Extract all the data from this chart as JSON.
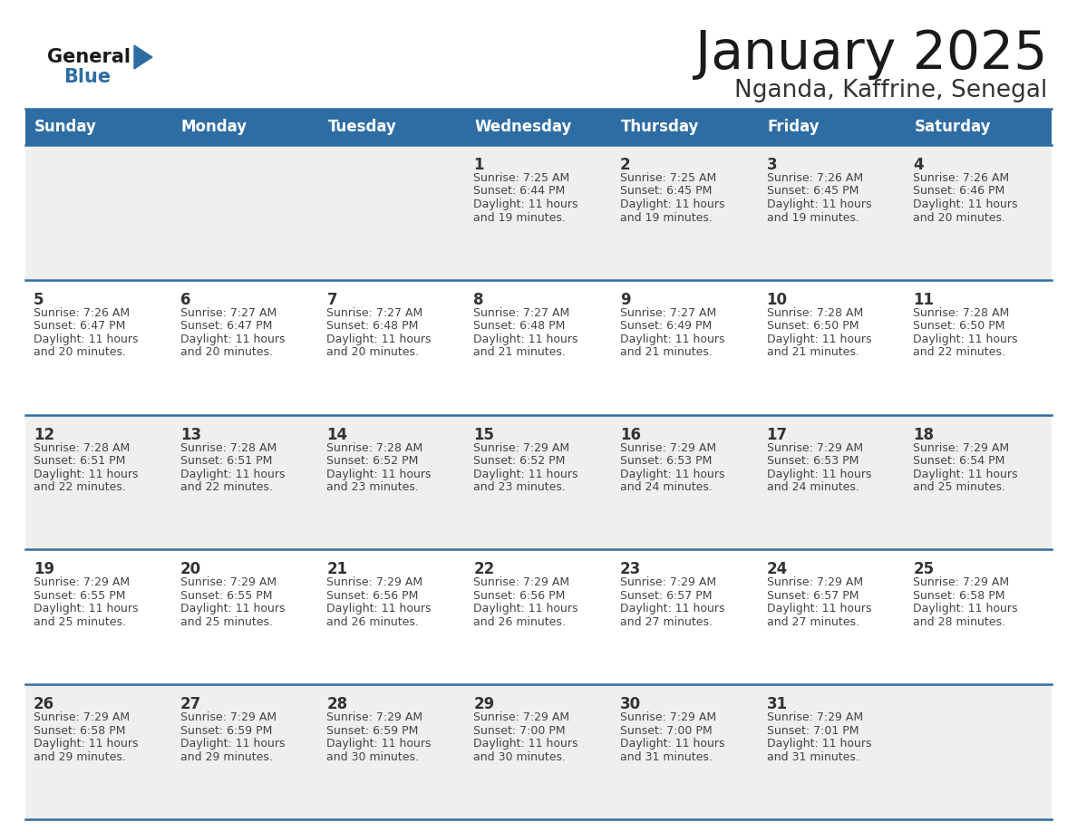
{
  "title": "January 2025",
  "subtitle": "Nganda, Kaffrine, Senegal",
  "days_of_week": [
    "Sunday",
    "Monday",
    "Tuesday",
    "Wednesday",
    "Thursday",
    "Friday",
    "Saturday"
  ],
  "header_bg": "#2E6DA4",
  "header_text": "#FFFFFF",
  "row_bg_odd": "#EFEFEF",
  "row_bg_even": "#FFFFFF",
  "row_separator": "#2E6DA4",
  "day_num_color": "#333333",
  "cell_text_color": "#444444",
  "title_color": "#1a1a1a",
  "subtitle_color": "#333333",
  "logo_general_color": "#1a1a1a",
  "logo_blue_color": "#2E6DA4",
  "calendar": [
    [
      {
        "day": null
      },
      {
        "day": null
      },
      {
        "day": null
      },
      {
        "day": 1,
        "sunrise": "7:25 AM",
        "sunset": "6:44 PM",
        "daylight": "11 hours and 19 minutes."
      },
      {
        "day": 2,
        "sunrise": "7:25 AM",
        "sunset": "6:45 PM",
        "daylight": "11 hours and 19 minutes."
      },
      {
        "day": 3,
        "sunrise": "7:26 AM",
        "sunset": "6:45 PM",
        "daylight": "11 hours and 19 minutes."
      },
      {
        "day": 4,
        "sunrise": "7:26 AM",
        "sunset": "6:46 PM",
        "daylight": "11 hours and 20 minutes."
      }
    ],
    [
      {
        "day": 5,
        "sunrise": "7:26 AM",
        "sunset": "6:47 PM",
        "daylight": "11 hours and 20 minutes."
      },
      {
        "day": 6,
        "sunrise": "7:27 AM",
        "sunset": "6:47 PM",
        "daylight": "11 hours and 20 minutes."
      },
      {
        "day": 7,
        "sunrise": "7:27 AM",
        "sunset": "6:48 PM",
        "daylight": "11 hours and 20 minutes."
      },
      {
        "day": 8,
        "sunrise": "7:27 AM",
        "sunset": "6:48 PM",
        "daylight": "11 hours and 21 minutes."
      },
      {
        "day": 9,
        "sunrise": "7:27 AM",
        "sunset": "6:49 PM",
        "daylight": "11 hours and 21 minutes."
      },
      {
        "day": 10,
        "sunrise": "7:28 AM",
        "sunset": "6:50 PM",
        "daylight": "11 hours and 21 minutes."
      },
      {
        "day": 11,
        "sunrise": "7:28 AM",
        "sunset": "6:50 PM",
        "daylight": "11 hours and 22 minutes."
      }
    ],
    [
      {
        "day": 12,
        "sunrise": "7:28 AM",
        "sunset": "6:51 PM",
        "daylight": "11 hours and 22 minutes."
      },
      {
        "day": 13,
        "sunrise": "7:28 AM",
        "sunset": "6:51 PM",
        "daylight": "11 hours and 22 minutes."
      },
      {
        "day": 14,
        "sunrise": "7:28 AM",
        "sunset": "6:52 PM",
        "daylight": "11 hours and 23 minutes."
      },
      {
        "day": 15,
        "sunrise": "7:29 AM",
        "sunset": "6:52 PM",
        "daylight": "11 hours and 23 minutes."
      },
      {
        "day": 16,
        "sunrise": "7:29 AM",
        "sunset": "6:53 PM",
        "daylight": "11 hours and 24 minutes."
      },
      {
        "day": 17,
        "sunrise": "7:29 AM",
        "sunset": "6:53 PM",
        "daylight": "11 hours and 24 minutes."
      },
      {
        "day": 18,
        "sunrise": "7:29 AM",
        "sunset": "6:54 PM",
        "daylight": "11 hours and 25 minutes."
      }
    ],
    [
      {
        "day": 19,
        "sunrise": "7:29 AM",
        "sunset": "6:55 PM",
        "daylight": "11 hours and 25 minutes."
      },
      {
        "day": 20,
        "sunrise": "7:29 AM",
        "sunset": "6:55 PM",
        "daylight": "11 hours and 25 minutes."
      },
      {
        "day": 21,
        "sunrise": "7:29 AM",
        "sunset": "6:56 PM",
        "daylight": "11 hours and 26 minutes."
      },
      {
        "day": 22,
        "sunrise": "7:29 AM",
        "sunset": "6:56 PM",
        "daylight": "11 hours and 26 minutes."
      },
      {
        "day": 23,
        "sunrise": "7:29 AM",
        "sunset": "6:57 PM",
        "daylight": "11 hours and 27 minutes."
      },
      {
        "day": 24,
        "sunrise": "7:29 AM",
        "sunset": "6:57 PM",
        "daylight": "11 hours and 27 minutes."
      },
      {
        "day": 25,
        "sunrise": "7:29 AM",
        "sunset": "6:58 PM",
        "daylight": "11 hours and 28 minutes."
      }
    ],
    [
      {
        "day": 26,
        "sunrise": "7:29 AM",
        "sunset": "6:58 PM",
        "daylight": "11 hours and 29 minutes."
      },
      {
        "day": 27,
        "sunrise": "7:29 AM",
        "sunset": "6:59 PM",
        "daylight": "11 hours and 29 minutes."
      },
      {
        "day": 28,
        "sunrise": "7:29 AM",
        "sunset": "6:59 PM",
        "daylight": "11 hours and 30 minutes."
      },
      {
        "day": 29,
        "sunrise": "7:29 AM",
        "sunset": "7:00 PM",
        "daylight": "11 hours and 30 minutes."
      },
      {
        "day": 30,
        "sunrise": "7:29 AM",
        "sunset": "7:00 PM",
        "daylight": "11 hours and 31 minutes."
      },
      {
        "day": 31,
        "sunrise": "7:29 AM",
        "sunset": "7:01 PM",
        "daylight": "11 hours and 31 minutes."
      },
      {
        "day": null
      }
    ]
  ]
}
